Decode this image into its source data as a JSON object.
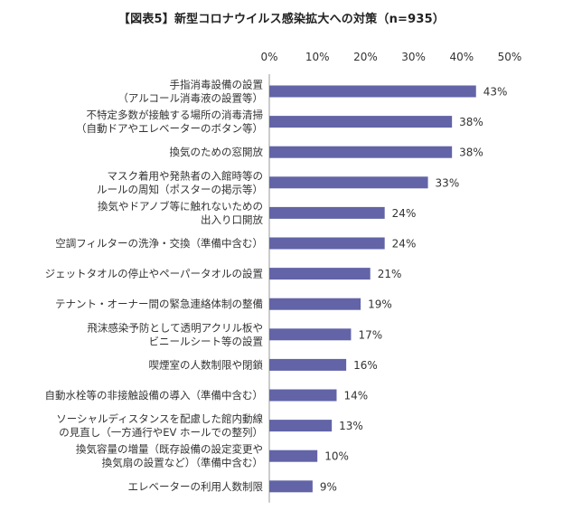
{
  "chart_data": {
    "type": "bar",
    "orientation": "horizontal",
    "title": "【図表5】新型コロナウイルス感染拡大への対策（n=935）",
    "xlabel": "",
    "ylabel": "",
    "xlim": [
      0,
      50
    ],
    "ticks": [
      "0%",
      "10%",
      "20%",
      "30%",
      "40%",
      "50%"
    ],
    "tick_values": [
      0,
      10,
      20,
      30,
      40,
      50
    ],
    "grid": false,
    "bar_color": "#6264a7",
    "categories": [
      [
        "手指消毒設備の設置",
        "（アルコール消毒液の設置等）"
      ],
      [
        "不特定多数が接触する場所の消毒清掃",
        "（自動ドアやエレベーターのボタン等）"
      ],
      [
        "換気のための窓開放"
      ],
      [
        "マスク着用や発熱者の入館時等の",
        "ルールの周知（ポスターの掲示等）"
      ],
      [
        "換気やドアノブ等に触れないための",
        "出入り口開放"
      ],
      [
        "空調フィルターの洗浄・交換（準備中含む）"
      ],
      [
        "ジェットタオルの停止やペーパータオルの設置"
      ],
      [
        "テナント・オーナー間の緊急連絡体制の整備"
      ],
      [
        "飛沫感染予防として透明アクリル板や",
        "ビニールシート等の設置"
      ],
      [
        "喫煙室の人数制限や閉鎖"
      ],
      [
        "自動水栓等の非接触設備の導入（準備中含む）"
      ],
      [
        "ソーシャルディスタンスを配慮した館内動線",
        "の見直し（一方通行やEV ホールでの整列）"
      ],
      [
        "換気容量の増量（既存設備の設定変更や",
        "換気扇の設置など）（準備中含む）"
      ],
      [
        "エレベーターの利用人数制限"
      ]
    ],
    "values": [
      43,
      38,
      38,
      33,
      24,
      24,
      21,
      19,
      17,
      16,
      14,
      13,
      10,
      9
    ],
    "value_labels": [
      "43%",
      "38%",
      "38%",
      "33%",
      "24%",
      "24%",
      "21%",
      "19%",
      "17%",
      "16%",
      "14%",
      "13%",
      "10%",
      "9%"
    ]
  }
}
